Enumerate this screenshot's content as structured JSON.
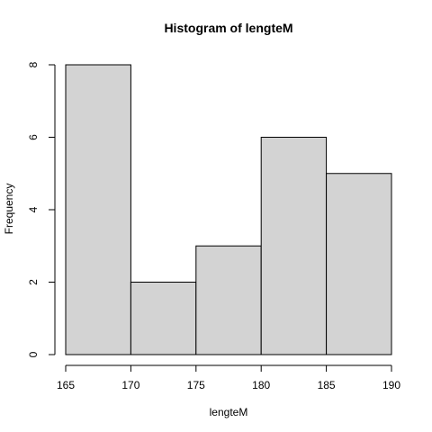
{
  "chart_data": {
    "type": "bar",
    "title": "Histogram of lengteM",
    "xlabel": "lengteM",
    "ylabel": "Frequency",
    "bins": [
      {
        "x0": 165,
        "x1": 170,
        "count": 8
      },
      {
        "x0": 170,
        "x1": 175,
        "count": 2
      },
      {
        "x0": 175,
        "x1": 180,
        "count": 3
      },
      {
        "x0": 180,
        "x1": 185,
        "count": 6
      },
      {
        "x0": 185,
        "x1": 190,
        "count": 5
      }
    ],
    "x_ticks": [
      165,
      170,
      175,
      180,
      185,
      190
    ],
    "y_ticks": [
      0,
      2,
      4,
      6,
      8
    ],
    "xlim": [
      165,
      190
    ],
    "ylim": [
      0,
      8
    ],
    "grid": false,
    "colors": {
      "bar_fill": "#d3d3d3",
      "bar_stroke": "#000000",
      "axis": "#000000",
      "background": "#ffffff"
    }
  }
}
